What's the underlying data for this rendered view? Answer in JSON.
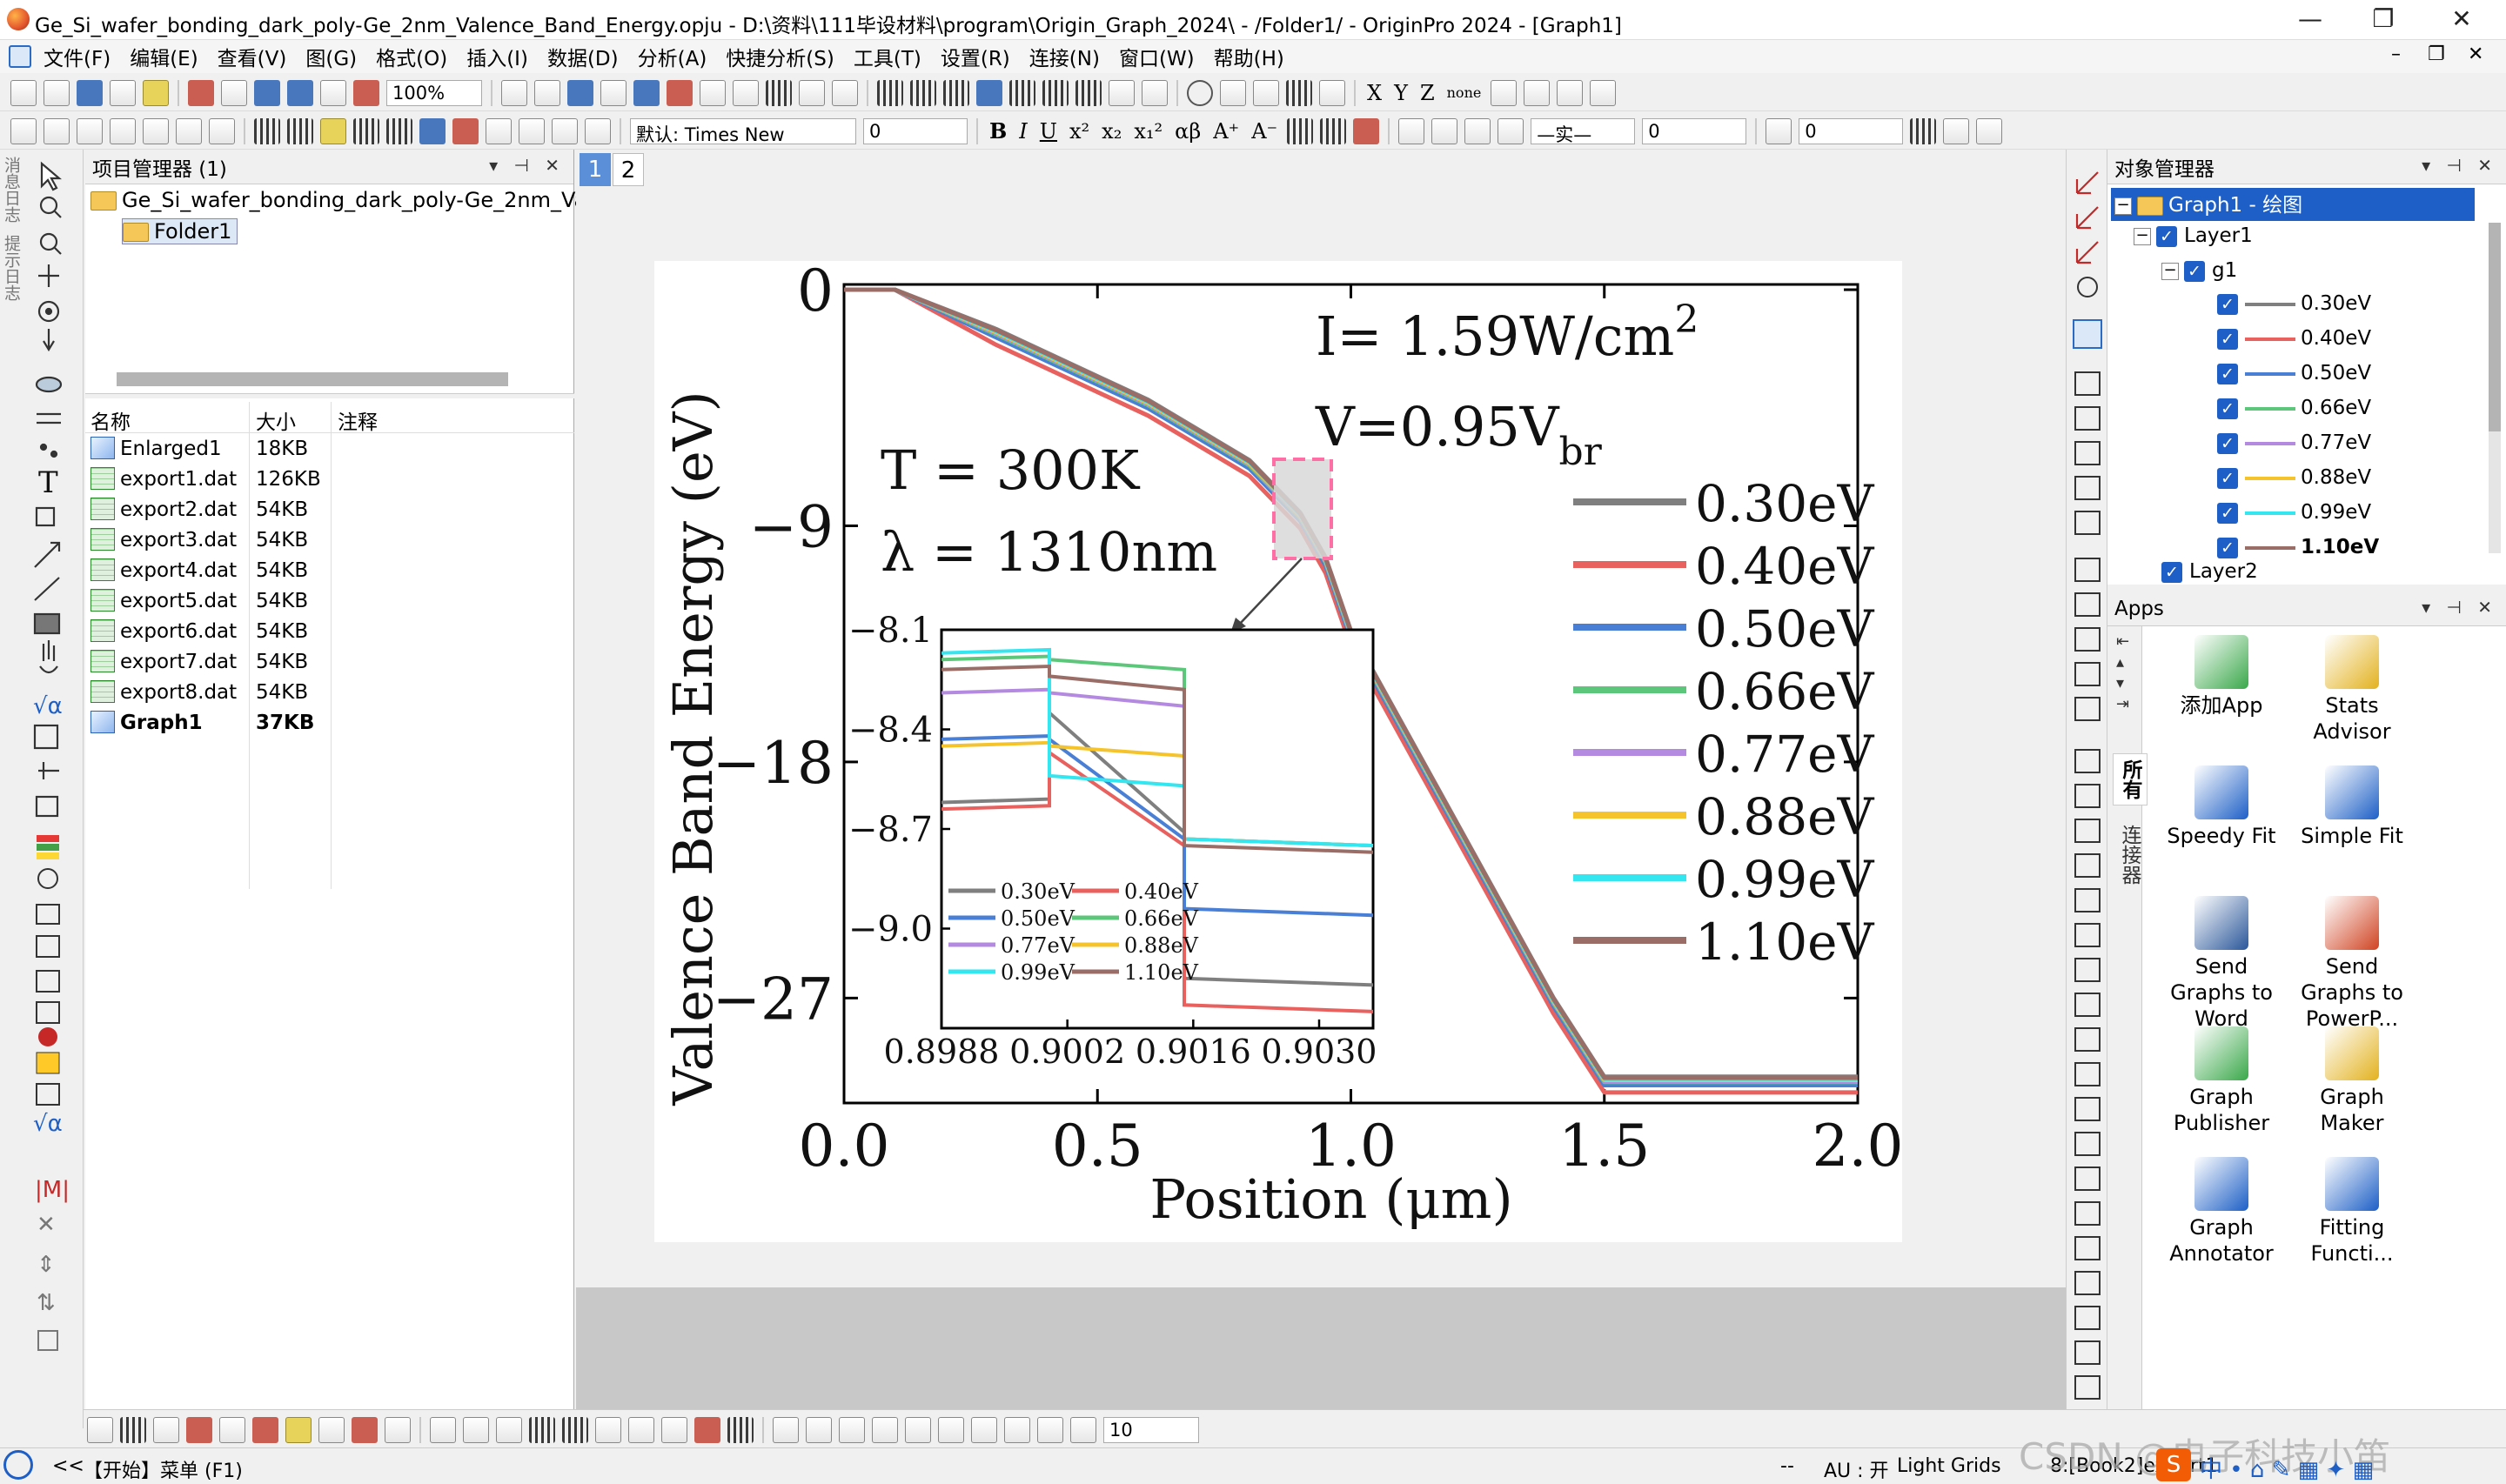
{
  "window": {
    "title": "Ge_Si_wafer_bonding_dark_poly-Ge_2nm_Valence_Band_Energy.opju - D:\\资料\\111毕设材料\\program\\Origin_Graph_2024\\ - /Folder1/ - OriginPro 2024 - [Graph1]",
    "minimize": "—",
    "restore": "❐",
    "close": "✕"
  },
  "menu": [
    "文件(F)",
    "编辑(E)",
    "查看(V)",
    "图(G)",
    "格式(O)",
    "插入(I)",
    "数据(D)",
    "分析(A)",
    "快捷分析(S)",
    "工具(T)",
    "设置(R)",
    "连接(N)",
    "窗口(W)",
    "帮助(H)"
  ],
  "toolbar": {
    "zoom": "100%",
    "font": "默认: Times New",
    "font_size": "0",
    "bold": "B",
    "italic": "I",
    "underline": "U",
    "superscript": "x²",
    "subscript": "x₂",
    "supsub": "x₁²",
    "greek": "αβ",
    "bigger": "A⁺",
    "smaller": "A⁻",
    "x_label": "X",
    "y_label": "Y",
    "z_label": "Z",
    "none_label": "none",
    "line_width": "0",
    "line_style": "—实—",
    "font_size2": "0"
  },
  "left_tabs": [
    "消息日志",
    "提示日志"
  ],
  "project_manager": {
    "title": "项目管理器 (1)",
    "root": "Ge_Si_wafer_bonding_dark_poly-Ge_2nm_Val",
    "folder": "Folder1",
    "columns": {
      "name": "名称",
      "size": "大小",
      "note": "注释"
    },
    "files": [
      {
        "name": "Enlarged1",
        "size": "18KB",
        "type": "graph"
      },
      {
        "name": "export1.dat",
        "size": "126KB",
        "type": "book"
      },
      {
        "name": "export2.dat",
        "size": "54KB",
        "type": "book"
      },
      {
        "name": "export3.dat",
        "size": "54KB",
        "type": "book"
      },
      {
        "name": "export4.dat",
        "size": "54KB",
        "type": "book"
      },
      {
        "name": "export5.dat",
        "size": "54KB",
        "type": "book"
      },
      {
        "name": "export6.dat",
        "size": "54KB",
        "type": "book"
      },
      {
        "name": "export7.dat",
        "size": "54KB",
        "type": "book"
      },
      {
        "name": "export8.dat",
        "size": "54KB",
        "type": "book"
      },
      {
        "name": "Graph1",
        "size": "37KB",
        "type": "graph"
      }
    ]
  },
  "page_tabs": [
    "1",
    "2"
  ],
  "object_manager": {
    "title": "对象管理器",
    "graph": "Graph1 - 绘图",
    "layer1": "Layer1",
    "group": "g1",
    "layer2": "Layer2"
  },
  "apps_panel": {
    "title": "Apps",
    "side_tabs": [
      "所有",
      "连接器"
    ],
    "items": [
      {
        "label": "添加App",
        "color": "#3aa84a"
      },
      {
        "label": "Stats Advisor",
        "color": "#e3b21f"
      },
      {
        "label": "Speedy Fit",
        "color": "#1d5fc7"
      },
      {
        "label": "Simple Fit",
        "color": "#1d5fc7"
      },
      {
        "label": "Send Graphs to Word",
        "color": "#2b579a"
      },
      {
        "label": "Send Graphs to PowerP...",
        "color": "#d04423"
      },
      {
        "label": "Graph Publisher",
        "color": "#3aa84a"
      },
      {
        "label": "Graph Maker",
        "color": "#e3b21f"
      },
      {
        "label": "Graph Annotator",
        "color": "#1d5fc7"
      },
      {
        "label": "Fitting Functi...",
        "color": "#1d5fc7"
      }
    ]
  },
  "bottom_toolbar": {
    "size_field": "10"
  },
  "status": {
    "start_menu": "【开始】菜单 (F1)",
    "nav": "<<",
    "dashes": "--",
    "au": "AU : 开",
    "grids": "Light Grids",
    "book": "8:[Book2]export1",
    "watermark": "CSDN @电子科技小笛"
  },
  "chart_data": {
    "type": "line",
    "ylabel": "Valence Band Energy (eV)",
    "xlabel": "Position (μm)",
    "xlim": [
      0.0,
      2.0
    ],
    "ylim": [
      -31,
      0.2
    ],
    "x_ticks": [
      "0.0",
      "0.5",
      "1.0",
      "1.5",
      "2.0"
    ],
    "y_ticks": [
      "0",
      "−9",
      "−18",
      "−27"
    ],
    "y_tick_values": [
      0,
      -9,
      -18,
      -27
    ],
    "x_tick_values": [
      0,
      0.5,
      1.0,
      1.5,
      2.0
    ],
    "annotations": {
      "intensity": "I= 1.59W/cm",
      "intensity_sup": "2",
      "voltage": "V=0.95V",
      "voltage_sub": "br",
      "temperature": "T = 300K",
      "wavelength": "λ = 1310nm"
    },
    "legend_position": "right",
    "series": [
      {
        "name": "0.30eV",
        "color": "#7f7f7f",
        "offset": 0.0
      },
      {
        "name": "0.40eV",
        "color": "#e8615f",
        "offset": -0.15
      },
      {
        "name": "0.50eV",
        "color": "#4a7fd6",
        "offset": -0.08
      },
      {
        "name": "0.66eV",
        "color": "#5cc77a",
        "offset": -0.05
      },
      {
        "name": "0.77eV",
        "color": "#b48ae0",
        "offset": -0.04
      },
      {
        "name": "0.88eV",
        "color": "#f5c42c",
        "offset": -0.03
      },
      {
        "name": "0.99eV",
        "color": "#33e6f0",
        "offset": -0.02
      },
      {
        "name": "1.10eV",
        "color": "#9b6d67",
        "offset": -0.01
      }
    ],
    "curve_x": [
      0.0,
      0.08,
      0.1,
      0.3,
      0.6,
      0.8,
      0.9,
      0.95,
      1.0,
      1.2,
      1.4,
      1.5,
      1.8,
      2.0
    ],
    "curve_y": [
      0.0,
      0.0,
      0.0,
      -1.5,
      -4.2,
      -6.5,
      -8.5,
      -10.2,
      -13.0,
      -20.0,
      -27.0,
      -30.0,
      -30.0,
      -30.0
    ],
    "inset": {
      "x_ticks": [
        "0.8988",
        "0.9002",
        "0.9016",
        "0.9030"
      ],
      "x_tick_values": [
        0.8988,
        0.9002,
        0.9016,
        0.903
      ],
      "xlim": [
        0.8988,
        0.9036
      ],
      "y_ticks": [
        "−8.1",
        "−8.4",
        "−8.7",
        "−9.0"
      ],
      "y_tick_values": [
        -8.1,
        -8.4,
        -8.7,
        -9.0
      ],
      "ylim": [
        -9.3,
        -8.1
      ],
      "step_x": [
        0.9,
        0.9015
      ],
      "levels": [
        {
          "name": "0.30eV",
          "color": "#7f7f7f",
          "y": [
            -8.62,
            -8.35,
            -8.71,
            -9.15
          ]
        },
        {
          "name": "0.40eV",
          "color": "#e8615f",
          "y": [
            -8.64,
            -8.47,
            -8.75,
            -9.23
          ]
        },
        {
          "name": "0.50eV",
          "color": "#4a7fd6",
          "y": [
            -8.43,
            -8.43,
            -8.73,
            -8.94
          ]
        },
        {
          "name": "0.66eV",
          "color": "#5cc77a",
          "y": [
            -8.19,
            -8.19,
            -8.22,
            -8.73
          ]
        },
        {
          "name": "0.77eV",
          "color": "#b48ae0",
          "y": [
            -8.29,
            -8.29,
            -8.33,
            -8.73
          ]
        },
        {
          "name": "0.88eV",
          "color": "#f5c42c",
          "y": [
            -8.45,
            -8.45,
            -8.48,
            -8.73
          ]
        },
        {
          "name": "0.99eV",
          "color": "#33e6f0",
          "y": [
            -8.17,
            -8.54,
            -8.57,
            -8.73
          ]
        },
        {
          "name": "1.10eV",
          "color": "#9b6d67",
          "y": [
            -8.22,
            -8.24,
            -8.28,
            -8.75
          ]
        }
      ]
    }
  }
}
